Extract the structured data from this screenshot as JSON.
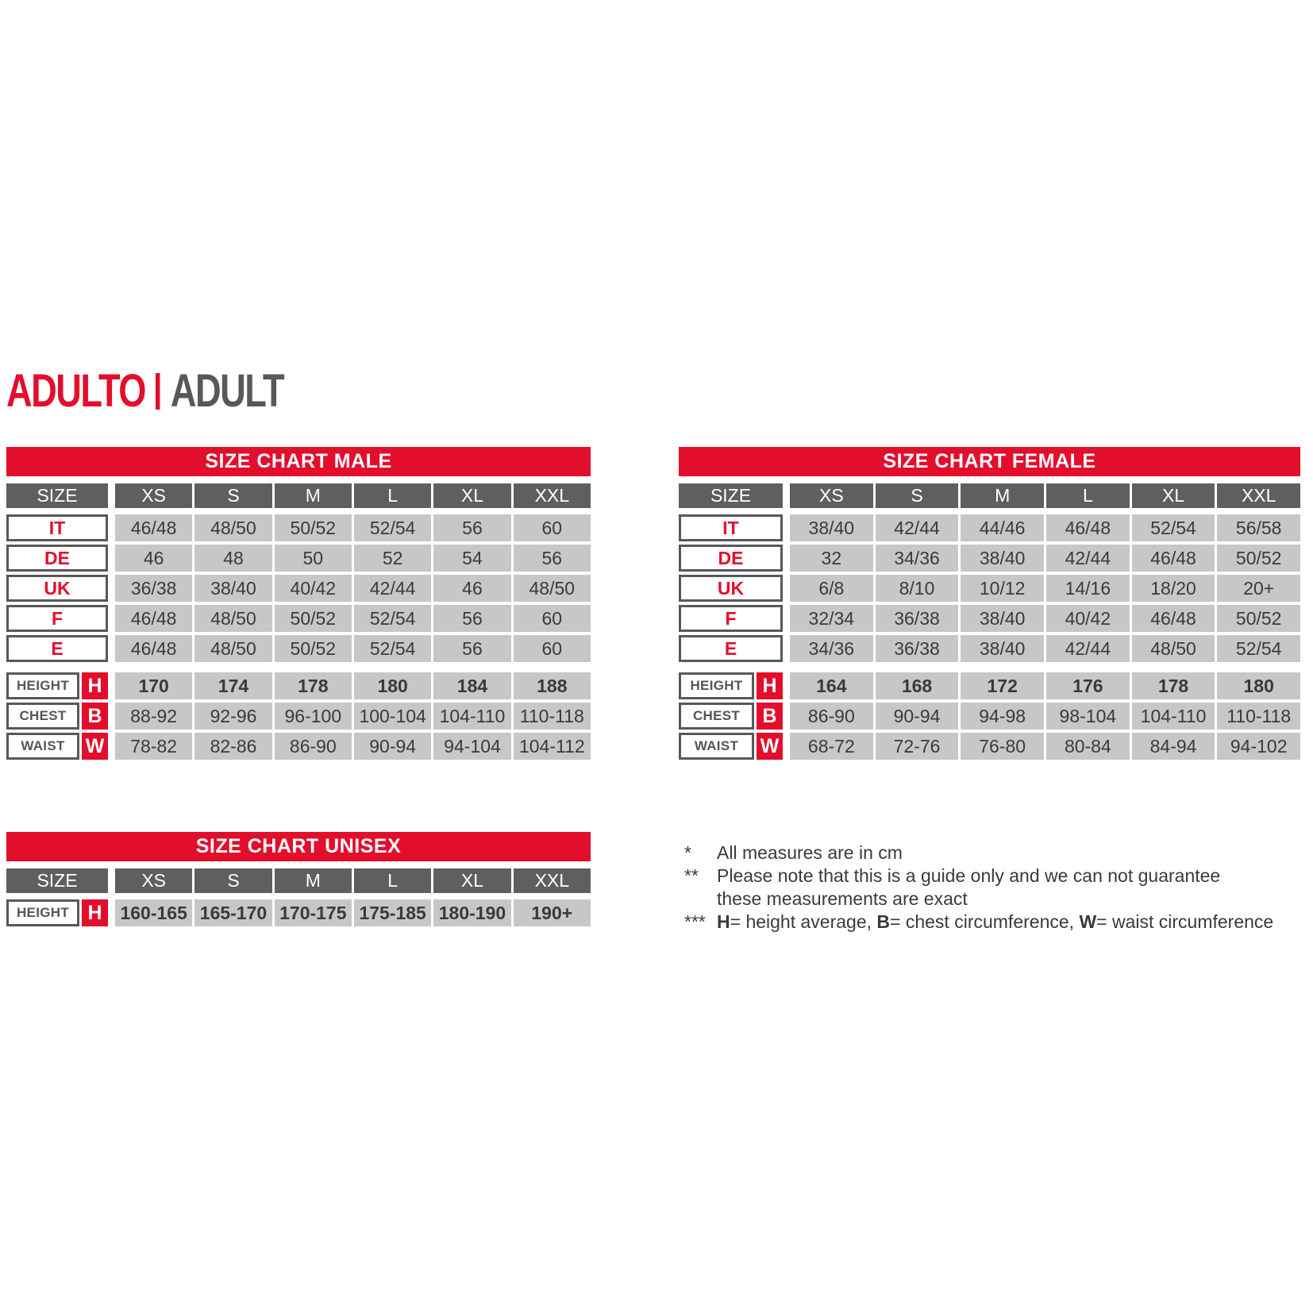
{
  "title": {
    "primary": "ADULTO",
    "separator": "|",
    "secondary": "ADULT"
  },
  "colors": {
    "red": "#e30e2c",
    "header_gray": "#5f5f61",
    "cell_gray": "#c6c7c8",
    "border_gray": "#58585a",
    "text_dark": "#3a3a39"
  },
  "tables": [
    {
      "id": "male",
      "title": "SIZE CHART MALE",
      "size_label": "SIZE",
      "columns": [
        "XS",
        "S",
        "M",
        "L",
        "XL",
        "XXL"
      ],
      "size_rows": [
        {
          "label": "IT",
          "values": [
            "46/48",
            "48/50",
            "50/52",
            "52/54",
            "56",
            "60"
          ]
        },
        {
          "label": "DE",
          "values": [
            "46",
            "48",
            "50",
            "52",
            "54",
            "56"
          ]
        },
        {
          "label": "UK",
          "values": [
            "36/38",
            "38/40",
            "40/42",
            "42/44",
            "46",
            "48/50"
          ]
        },
        {
          "label": "F",
          "values": [
            "46/48",
            "48/50",
            "50/52",
            "52/54",
            "56",
            "60"
          ]
        },
        {
          "label": "E",
          "values": [
            "46/48",
            "48/50",
            "50/52",
            "52/54",
            "56",
            "60"
          ]
        }
      ],
      "measure_rows": [
        {
          "label": "HEIGHT",
          "letter": "H",
          "bold": true,
          "values": [
            "170",
            "174",
            "178",
            "180",
            "184",
            "188"
          ]
        },
        {
          "label": "CHEST",
          "letter": "B",
          "bold": false,
          "values": [
            "88-92",
            "92-96",
            "96-100",
            "100-104",
            "104-110",
            "110-118"
          ]
        },
        {
          "label": "WAIST",
          "letter": "W",
          "bold": false,
          "values": [
            "78-82",
            "82-86",
            "86-90",
            "90-94",
            "94-104",
            "104-112"
          ]
        }
      ]
    },
    {
      "id": "female",
      "title": "SIZE CHART FEMALE",
      "size_label": "SIZE",
      "columns": [
        "XS",
        "S",
        "M",
        "L",
        "XL",
        "XXL"
      ],
      "size_rows": [
        {
          "label": "IT",
          "values": [
            "38/40",
            "42/44",
            "44/46",
            "46/48",
            "52/54",
            "56/58"
          ]
        },
        {
          "label": "DE",
          "values": [
            "32",
            "34/36",
            "38/40",
            "42/44",
            "46/48",
            "50/52"
          ]
        },
        {
          "label": "UK",
          "values": [
            "6/8",
            "8/10",
            "10/12",
            "14/16",
            "18/20",
            "20+"
          ]
        },
        {
          "label": "F",
          "values": [
            "32/34",
            "36/38",
            "38/40",
            "40/42",
            "46/48",
            "50/52"
          ]
        },
        {
          "label": "E",
          "values": [
            "34/36",
            "36/38",
            "38/40",
            "42/44",
            "48/50",
            "52/54"
          ]
        }
      ],
      "measure_rows": [
        {
          "label": "HEIGHT",
          "letter": "H",
          "bold": true,
          "values": [
            "164",
            "168",
            "172",
            "176",
            "178",
            "180"
          ]
        },
        {
          "label": "CHEST",
          "letter": "B",
          "bold": false,
          "values": [
            "86-90",
            "90-94",
            "94-98",
            "98-104",
            "104-110",
            "110-118"
          ]
        },
        {
          "label": "WAIST",
          "letter": "W",
          "bold": false,
          "values": [
            "68-72",
            "72-76",
            "76-80",
            "80-84",
            "84-94",
            "94-102"
          ]
        }
      ]
    },
    {
      "id": "unisex",
      "title": "SIZE CHART UNISEX",
      "size_label": "SIZE",
      "columns": [
        "XS",
        "S",
        "M",
        "L",
        "XL",
        "XXL"
      ],
      "size_rows": [],
      "measure_rows": [
        {
          "label": "HEIGHT",
          "letter": "H",
          "bold": true,
          "values": [
            "160-165",
            "165-170",
            "170-175",
            "175-185",
            "180-190",
            "190+"
          ]
        }
      ]
    }
  ],
  "notes": [
    {
      "marker": "*",
      "lines": [
        [
          {
            "text": "All measures are in cm"
          }
        ]
      ]
    },
    {
      "marker": "**",
      "lines": [
        [
          {
            "text": "Please note that this is a guide only and we can not guarantee"
          }
        ],
        [
          {
            "text": "these measurements are exact"
          }
        ]
      ]
    },
    {
      "marker": "***",
      "lines": [
        [
          {
            "text": "H",
            "bold": true
          },
          {
            "text": "= height average, "
          },
          {
            "text": "B",
            "bold": true
          },
          {
            "text": "= chest circumference, "
          },
          {
            "text": "W",
            "bold": true
          },
          {
            "text": "= waist circumference"
          }
        ]
      ]
    }
  ]
}
